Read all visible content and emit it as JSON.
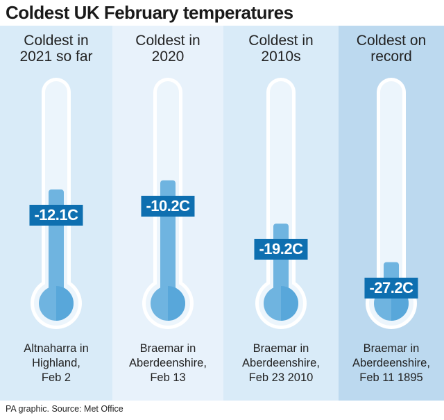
{
  "title": "Coldest UK February temperatures",
  "source": "PA graphic. Source: Met Office",
  "colors": {
    "panel_backgrounds": [
      "#d9ebf8",
      "#e8f2fb",
      "#d9ebf8",
      "#bcd9ef"
    ],
    "tube": "#ecf5fc",
    "tube_outline": "#ffffff",
    "mercury": "#6fb4e0",
    "mercury_dark": "#4a9fd6",
    "label_background": "#0e6fb0"
  },
  "chart_data": {
    "type": "bar",
    "title": "Coldest UK February temperatures",
    "unit": "C",
    "ylim": [
      -30,
      0
    ],
    "categories": [
      "Coldest in 2021 so far",
      "Coldest in 2020",
      "Coldest in 2010s",
      "Coldest on record"
    ],
    "values": [
      -12.1,
      -10.2,
      -19.2,
      -27.2
    ],
    "panels": [
      {
        "heading": [
          "Coldest in",
          "2021 so far"
        ],
        "label": "-12.1C",
        "value": -12.1,
        "location": [
          "Altnaharra in",
          "Highland,",
          "Feb 2"
        ]
      },
      {
        "heading": [
          "Coldest in",
          "2020"
        ],
        "label": "-10.2C",
        "value": -10.2,
        "location": [
          "Braemar in",
          "Aberdeenshire,",
          "Feb 13"
        ]
      },
      {
        "heading": [
          "Coldest in",
          "2010s"
        ],
        "label": "-19.2C",
        "value": -19.2,
        "location": [
          "Braemar in",
          "Aberdeenshire,",
          "Feb 23 2010"
        ]
      },
      {
        "heading": [
          "Coldest on",
          "record"
        ],
        "label": "-27.2C",
        "value": -27.2,
        "location": [
          "Braemar in",
          "Aberdeenshire,",
          "Feb 11 1895"
        ]
      }
    ]
  }
}
